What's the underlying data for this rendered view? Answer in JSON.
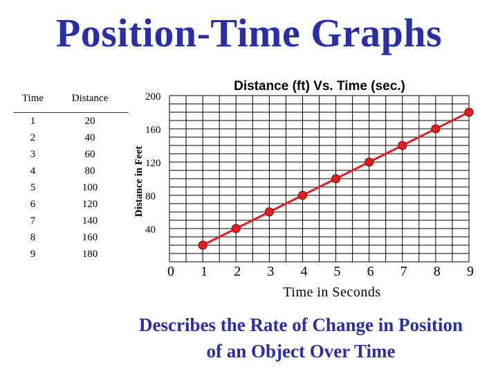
{
  "slide": {
    "title": "Position-Time Graphs",
    "subtitle": "Describes the Rate of Change in Position of an Object Over Time"
  },
  "table": {
    "headers": [
      "Time",
      "Distance"
    ],
    "rows": [
      [
        "1",
        "20"
      ],
      [
        "2",
        "40"
      ],
      [
        "3",
        "60"
      ],
      [
        "4",
        "80"
      ],
      [
        "5",
        "100"
      ],
      [
        "6",
        "120"
      ],
      [
        "7",
        "140"
      ],
      [
        "8",
        "160"
      ],
      [
        "9",
        "180"
      ]
    ]
  },
  "chart_data": {
    "type": "line",
    "title": "Distance (ft) Vs. Time (sec.)",
    "xlabel": "Time in Seconds",
    "ylabel": "Distance in Feet",
    "x": [
      1,
      2,
      3,
      4,
      5,
      6,
      7,
      8,
      9
    ],
    "series": [
      {
        "values": [
          20,
          40,
          60,
          80,
          100,
          120,
          140,
          160,
          180
        ]
      }
    ],
    "xlim": [
      0,
      9
    ],
    "ylim": [
      0,
      200
    ],
    "x_ticks": [
      "0",
      "1",
      "2",
      "3",
      "4",
      "5",
      "6",
      "7",
      "8",
      "9"
    ],
    "y_ticks": [
      "40",
      "80",
      "120",
      "160",
      "200"
    ],
    "grid": true,
    "line_color": "#e02020",
    "marker_color": "#e02020"
  }
}
